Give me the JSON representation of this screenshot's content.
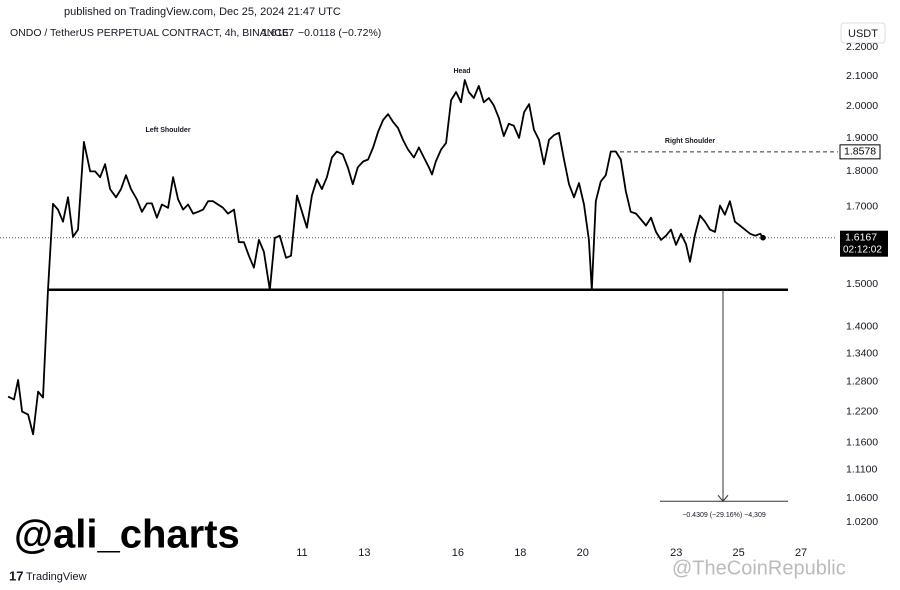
{
  "header": "published on TradingView.com, Dec 25, 2024 21:47 UTC",
  "chart_data": {
    "type": "line",
    "title": "ONDO / TetherUS PERPETUAL CONTRACT, 4h, BINANCE",
    "last_price": 1.6167,
    "change": "−0.0118 (−0.72%)",
    "currency": "USDT",
    "countdown": "02:12:02",
    "color": "#000000",
    "log_scale": true,
    "grid": false,
    "x": [
      1.58,
      1.77,
      1.9,
      2.03,
      2.22,
      2.38,
      2.54,
      2.7,
      2.86,
      3.02,
      3.18,
      3.34,
      3.5,
      3.66,
      3.82,
      4.01,
      4.21,
      4.37,
      4.53,
      4.69,
      4.85,
      5.04,
      5.2,
      5.36,
      5.52,
      5.71,
      5.87,
      6.03,
      6.19,
      6.35,
      6.51,
      6.71,
      6.87,
      7.03,
      7.19,
      7.35,
      7.51,
      7.67,
      7.83,
      7.99,
      8.15,
      8.31,
      8.47,
      8.63,
      8.82,
      8.98,
      9.14,
      9.3,
      9.46,
      9.62,
      9.78,
      9.97,
      10.13,
      10.29,
      10.49,
      10.65,
      10.84,
      11.0,
      11.16,
      11.32,
      11.48,
      11.64,
      11.8,
      11.96,
      12.12,
      12.31,
      12.47,
      12.63,
      12.79,
      12.96,
      13.12,
      13.28,
      13.44,
      13.6,
      13.76,
      13.92,
      14.08,
      14.24,
      14.4,
      14.59,
      14.75,
      14.91,
      15.07,
      15.17,
      15.29,
      15.46,
      15.62,
      15.78,
      15.94,
      16.1,
      16.22,
      16.35,
      16.51,
      16.67,
      16.83,
      16.99,
      17.15,
      17.31,
      17.47,
      17.63,
      17.79,
      17.96,
      18.12,
      18.28,
      18.44,
      18.6,
      18.76,
      18.92,
      19.08,
      19.24,
      19.4,
      19.56,
      19.72,
      19.88,
      20.04,
      20.2,
      20.29,
      20.42,
      20.58,
      20.74,
      20.9,
      21.06,
      21.22,
      21.38,
      21.54,
      21.71,
      21.87,
      22.03,
      22.19,
      22.35,
      22.51,
      22.67,
      22.83,
      22.99,
      23.15,
      23.31,
      23.44,
      23.6,
      23.76,
      23.92,
      24.08,
      24.24,
      24.4,
      24.56,
      24.72,
      24.88,
      25.04,
      25.2,
      25.37,
      25.53,
      25.69,
      25.78
    ],
    "values": [
      1.25,
      1.244,
      1.284,
      1.22,
      1.214,
      1.176,
      1.26,
      1.248,
      1.486,
      1.708,
      1.692,
      1.659,
      1.726,
      1.619,
      1.638,
      1.888,
      1.8,
      1.8,
      1.783,
      1.821,
      1.749,
      1.726,
      1.749,
      1.789,
      1.749,
      1.72,
      1.686,
      1.709,
      1.709,
      1.67,
      1.706,
      1.697,
      1.783,
      1.72,
      1.692,
      1.706,
      1.681,
      1.686,
      1.692,
      1.715,
      1.715,
      1.706,
      1.697,
      1.681,
      1.692,
      1.605,
      1.605,
      1.57,
      1.54,
      1.611,
      1.58,
      1.486,
      1.616,
      1.622,
      1.565,
      1.57,
      1.731,
      1.686,
      1.643,
      1.731,
      1.777,
      1.749,
      1.783,
      1.841,
      1.859,
      1.85,
      1.812,
      1.763,
      1.812,
      1.829,
      1.835,
      1.871,
      1.919,
      1.956,
      1.975,
      1.95,
      1.931,
      1.894,
      1.865,
      1.841,
      1.871,
      1.841,
      1.812,
      1.791,
      1.829,
      1.865,
      1.885,
      2.02,
      2.047,
      2.013,
      2.087,
      2.047,
      2.027,
      2.067,
      2.013,
      2.027,
      2.003,
      1.963,
      1.906,
      1.944,
      1.938,
      1.9,
      1.981,
      2.007,
      1.925,
      1.894,
      1.821,
      1.894,
      1.909,
      1.916,
      1.835,
      1.763,
      1.726,
      1.766,
      1.706,
      1.611,
      1.486,
      1.715,
      1.771,
      1.789,
      1.859,
      1.859,
      1.835,
      1.743,
      1.686,
      1.681,
      1.665,
      1.649,
      1.67,
      1.632,
      1.611,
      1.622,
      1.638,
      1.598,
      1.627,
      1.6,
      1.555,
      1.624,
      1.676,
      1.659,
      1.638,
      1.632,
      1.703,
      1.678,
      1.715,
      1.659,
      1.649,
      1.638,
      1.627,
      1.622,
      1.627,
      1.6167
    ],
    "xlim": [
      1.32,
      28.12
    ],
    "ylim": [
      0.999,
      2.263
    ],
    "xticks": [
      11,
      13,
      16,
      18,
      20,
      23,
      25,
      27
    ],
    "yticks": [
      {
        "value": 2.2,
        "label": "2.2000"
      },
      {
        "value": 2.1,
        "label": "2.1000"
      },
      {
        "value": 2.0,
        "label": "2.0000"
      },
      {
        "value": 1.9,
        "label": "1.9000"
      },
      {
        "value": 1.8,
        "label": "1.8000"
      },
      {
        "value": 1.7,
        "label": "1.7000"
      },
      {
        "value": 1.5,
        "label": "1.5000"
      },
      {
        "value": 1.4,
        "label": "1.4000"
      },
      {
        "value": 1.34,
        "label": "1.3400"
      },
      {
        "value": 1.28,
        "label": "1.2800"
      },
      {
        "value": 1.22,
        "label": "1.2200"
      },
      {
        "value": 1.16,
        "label": "1.1600"
      },
      {
        "value": 1.11,
        "label": "1.1100"
      },
      {
        "value": 1.06,
        "label": "1.0600"
      },
      {
        "value": 1.02,
        "label": "1.0200"
      }
    ],
    "annotations": [
      "Left Shoulder",
      "Head",
      "Right Shoulder"
    ],
    "neckline": 1.486,
    "target_level": 1.8578,
    "measure": {
      "value": -0.4309,
      "label": "−0.4309 (−29.16%) −4,309"
    }
  },
  "author": "@ali_charts",
  "brand": "TradingView",
  "watermark": "@TheCoinRepublic"
}
